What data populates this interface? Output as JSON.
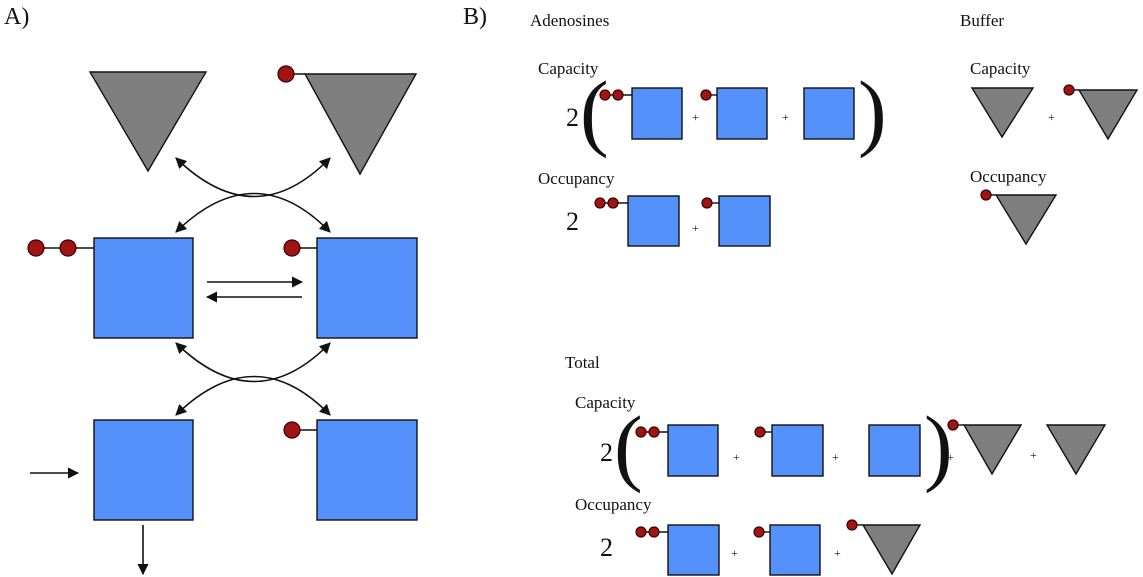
{
  "panel_a": {
    "label": "A)"
  },
  "panel_b": {
    "label": "B)",
    "adenosines": {
      "title": "Adenosines",
      "capacity": "Capacity",
      "occupancy": "Occupancy",
      "coef": "2"
    },
    "buffer": {
      "title": "Buffer",
      "capacity": "Capacity",
      "occupancy": "Occupancy"
    },
    "total": {
      "title": "Total",
      "capacity": "Capacity",
      "occupancy": "Occupancy",
      "coef": "2"
    },
    "plus": "+",
    "open_paren": "(",
    "close_paren": ")"
  },
  "colors": {
    "adenosine": "#5591fb",
    "buffer": "#7f7f7f",
    "phosphate": "#a01414"
  }
}
